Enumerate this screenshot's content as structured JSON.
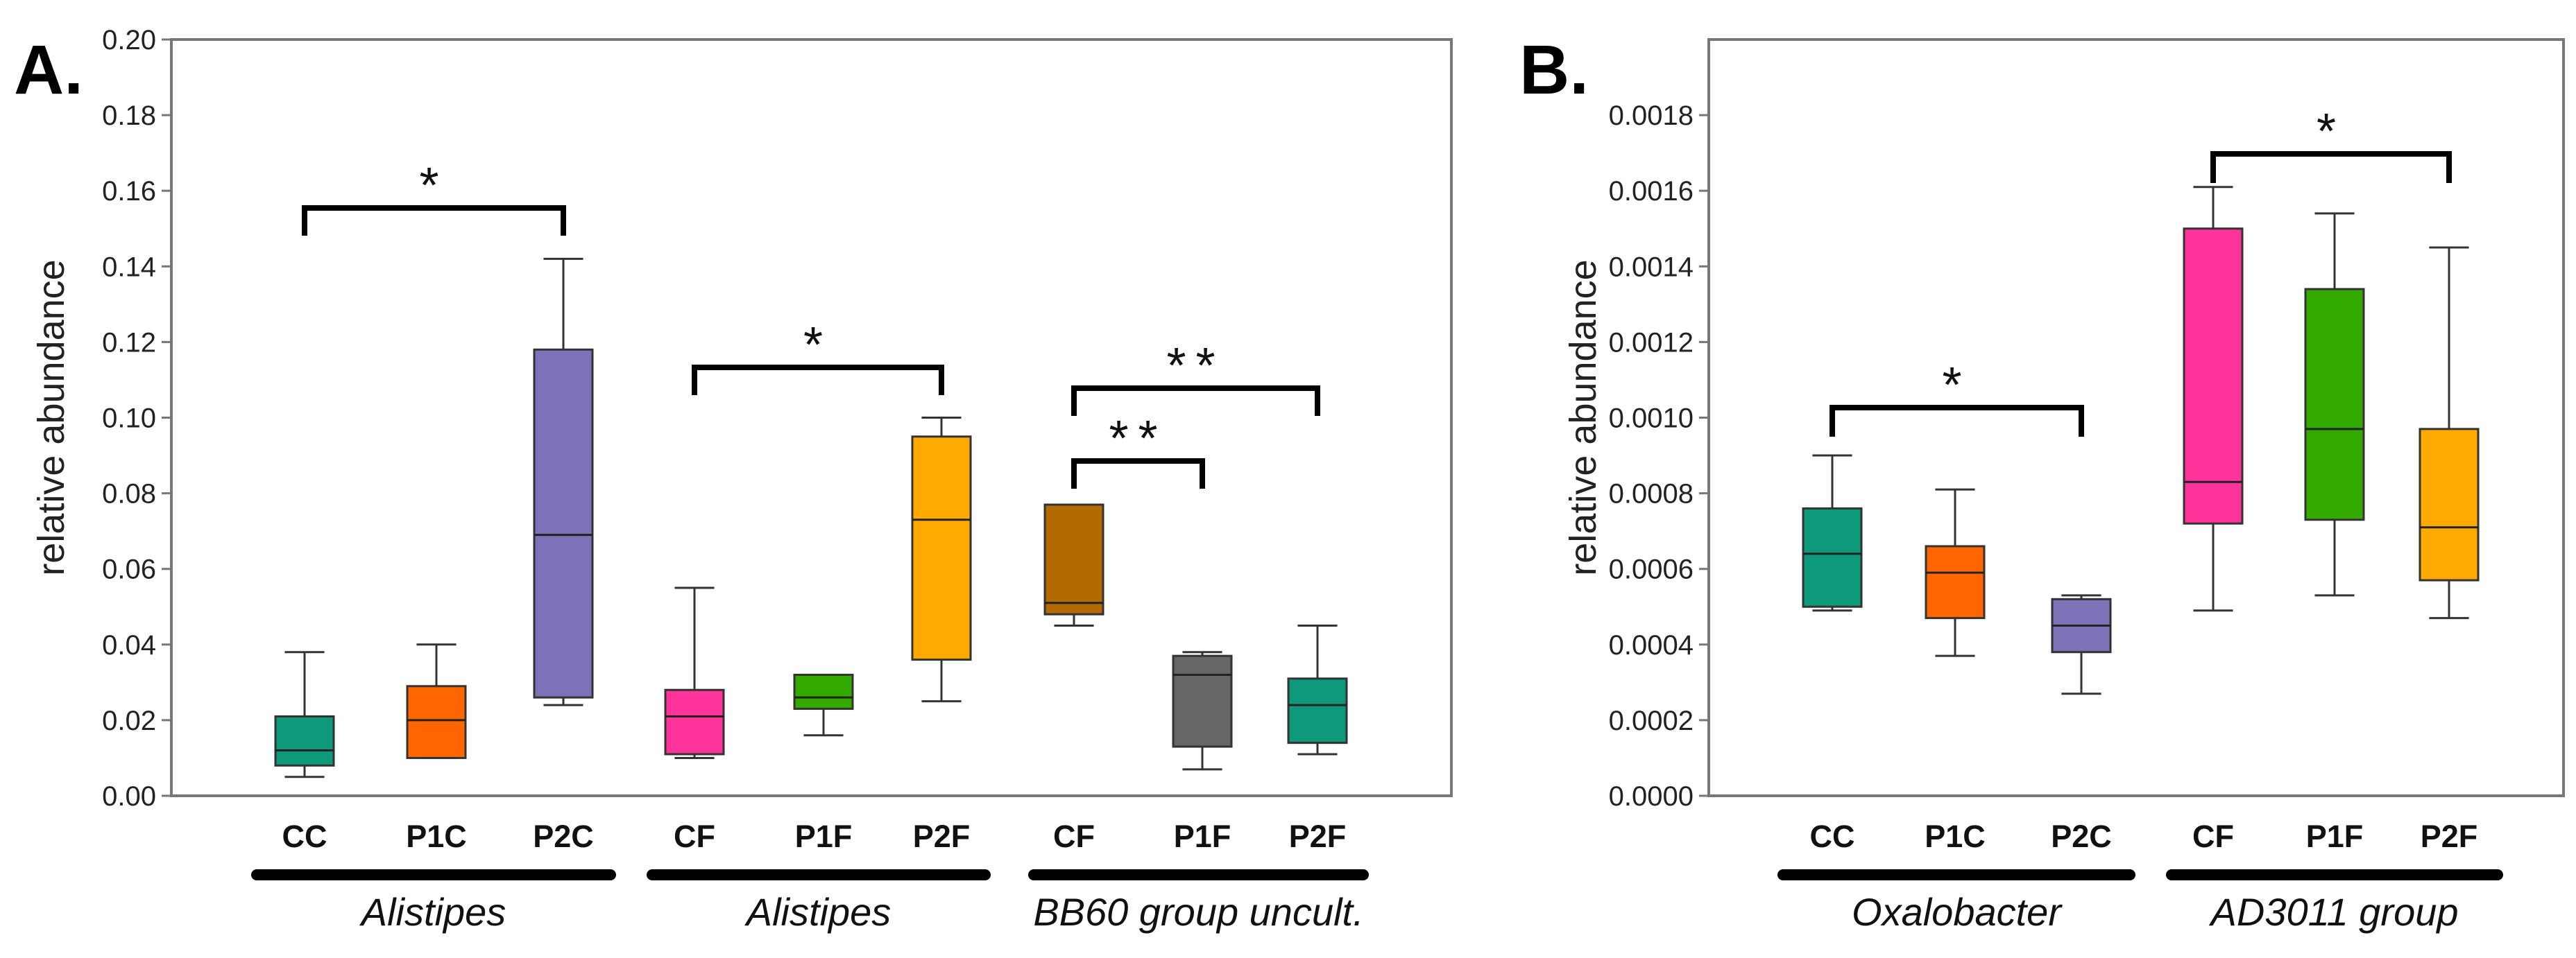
{
  "chart_data": [
    {
      "type": "box",
      "panel_label": "A.",
      "ylabel": "relative abundance",
      "ylim": [
        0,
        0.2
      ],
      "yticks": [
        "0.00",
        "0.02",
        "0.04",
        "0.06",
        "0.08",
        "0.10",
        "0.12",
        "0.14",
        "0.16",
        "0.18",
        "0.20"
      ],
      "groups": [
        {
          "name": "Alistipes",
          "boxes": [
            {
              "label": "CC",
              "color": "#0e9a7a",
              "min": 0.005,
              "q1": 0.008,
              "median": 0.012,
              "q3": 0.021,
              "max": 0.038
            },
            {
              "label": "P1C",
              "color": "#ff6600",
              "min": 0.01,
              "q1": 0.01,
              "median": 0.02,
              "q3": 0.029,
              "max": 0.04
            },
            {
              "label": "P2C",
              "color": "#7b72b8",
              "min": 0.024,
              "q1": 0.026,
              "median": 0.069,
              "q3": 0.118,
              "max": 0.142
            }
          ]
        },
        {
          "name": "Alistipes",
          "boxes": [
            {
              "label": "CF",
              "color": "#ff3399",
              "min": 0.01,
              "q1": 0.011,
              "median": 0.021,
              "q3": 0.028,
              "max": 0.055
            },
            {
              "label": "P1F",
              "color": "#33aa00",
              "min": 0.016,
              "q1": 0.023,
              "median": 0.026,
              "q3": 0.032,
              "max": 0.032
            },
            {
              "label": "P2F",
              "color": "#ffaa00",
              "min": 0.025,
              "q1": 0.036,
              "median": 0.073,
              "q3": 0.095,
              "max": 0.1
            }
          ]
        },
        {
          "name": "BB60 group uncult.",
          "boxes": [
            {
              "label": "CF",
              "color": "#b36b00",
              "min": 0.045,
              "q1": 0.048,
              "median": 0.051,
              "q3": 0.077,
              "max": 0.077
            },
            {
              "label": "P1F",
              "color": "#666666",
              "min": 0.007,
              "q1": 0.013,
              "median": 0.032,
              "q3": 0.037,
              "max": 0.038
            },
            {
              "label": "P2F",
              "color": "#0e9a7a",
              "min": 0.011,
              "q1": 0.014,
              "median": 0.024,
              "q3": 0.031,
              "max": 0.045
            }
          ]
        }
      ],
      "significance": [
        {
          "from": "CC",
          "from_group": 0,
          "to": "P2C",
          "to_group": 0,
          "label": "*"
        },
        {
          "from": "CF",
          "from_group": 1,
          "to": "P2F",
          "to_group": 1,
          "label": "*"
        },
        {
          "from": "CF",
          "from_group": 2,
          "to": "P2F",
          "to_group": 2,
          "label": "**"
        },
        {
          "from": "CF",
          "from_group": 2,
          "to": "P1F",
          "to_group": 2,
          "label": "**"
        }
      ]
    },
    {
      "type": "box",
      "panel_label": "B.",
      "ylabel": "relative abundance",
      "ylim": [
        0,
        0.002
      ],
      "yticks": [
        "0.0000",
        "0.0002",
        "0.0004",
        "0.0006",
        "0.0008",
        "0.0010",
        "0.0012",
        "0.0014",
        "0.0016",
        "0.0018"
      ],
      "groups": [
        {
          "name": "Oxalobacter",
          "boxes": [
            {
              "label": "CC",
              "color": "#0e9a7a",
              "min": 0.00049,
              "q1": 0.0005,
              "median": 0.00064,
              "q3": 0.00076,
              "max": 0.0009
            },
            {
              "label": "P1C",
              "color": "#ff6600",
              "min": 0.00037,
              "q1": 0.00047,
              "median": 0.00059,
              "q3": 0.00066,
              "max": 0.00081
            },
            {
              "label": "P2C",
              "color": "#7b72b8",
              "min": 0.00027,
              "q1": 0.00038,
              "median": 0.00045,
              "q3": 0.00052,
              "max": 0.00053
            }
          ]
        },
        {
          "name": "AD3011 group",
          "boxes": [
            {
              "label": "CF",
              "color": "#ff3399",
              "min": 0.00049,
              "q1": 0.00072,
              "median": 0.00083,
              "q3": 0.0015,
              "max": 0.00161
            },
            {
              "label": "P1F",
              "color": "#33aa00",
              "min": 0.00053,
              "q1": 0.00073,
              "median": 0.00097,
              "q3": 0.00134,
              "max": 0.00154
            },
            {
              "label": "P2F",
              "color": "#ffaa00",
              "min": 0.00047,
              "q1": 0.00057,
              "median": 0.00071,
              "q3": 0.00097,
              "max": 0.00145
            }
          ]
        }
      ],
      "significance": [
        {
          "from": "CC",
          "from_group": 0,
          "to": "P2C",
          "to_group": 0,
          "label": "*"
        },
        {
          "from": "CF",
          "from_group": 1,
          "to": "P2F",
          "to_group": 1,
          "label": "*"
        }
      ]
    }
  ]
}
